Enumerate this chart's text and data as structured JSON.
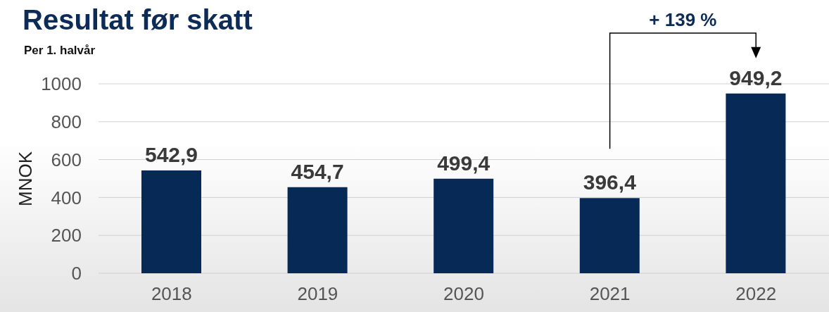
{
  "chart_data": {
    "type": "bar",
    "title": "Resultat før skatt",
    "subtitle": "Per 1. halvår",
    "ylabel": "MNOK",
    "categories": [
      "2018",
      "2019",
      "2020",
      "2021",
      "2022"
    ],
    "values": [
      542.9,
      454.7,
      499.4,
      396.4,
      949.2
    ],
    "value_labels": [
      "542,9",
      "454,7",
      "499,4",
      "396,4",
      "949,2"
    ],
    "color": "#062a55",
    "ylim": [
      0,
      1000
    ],
    "yticks": [
      0,
      200,
      400,
      600,
      800,
      1000
    ],
    "grid": "y",
    "annotations": [
      "+ 139 %"
    ]
  }
}
